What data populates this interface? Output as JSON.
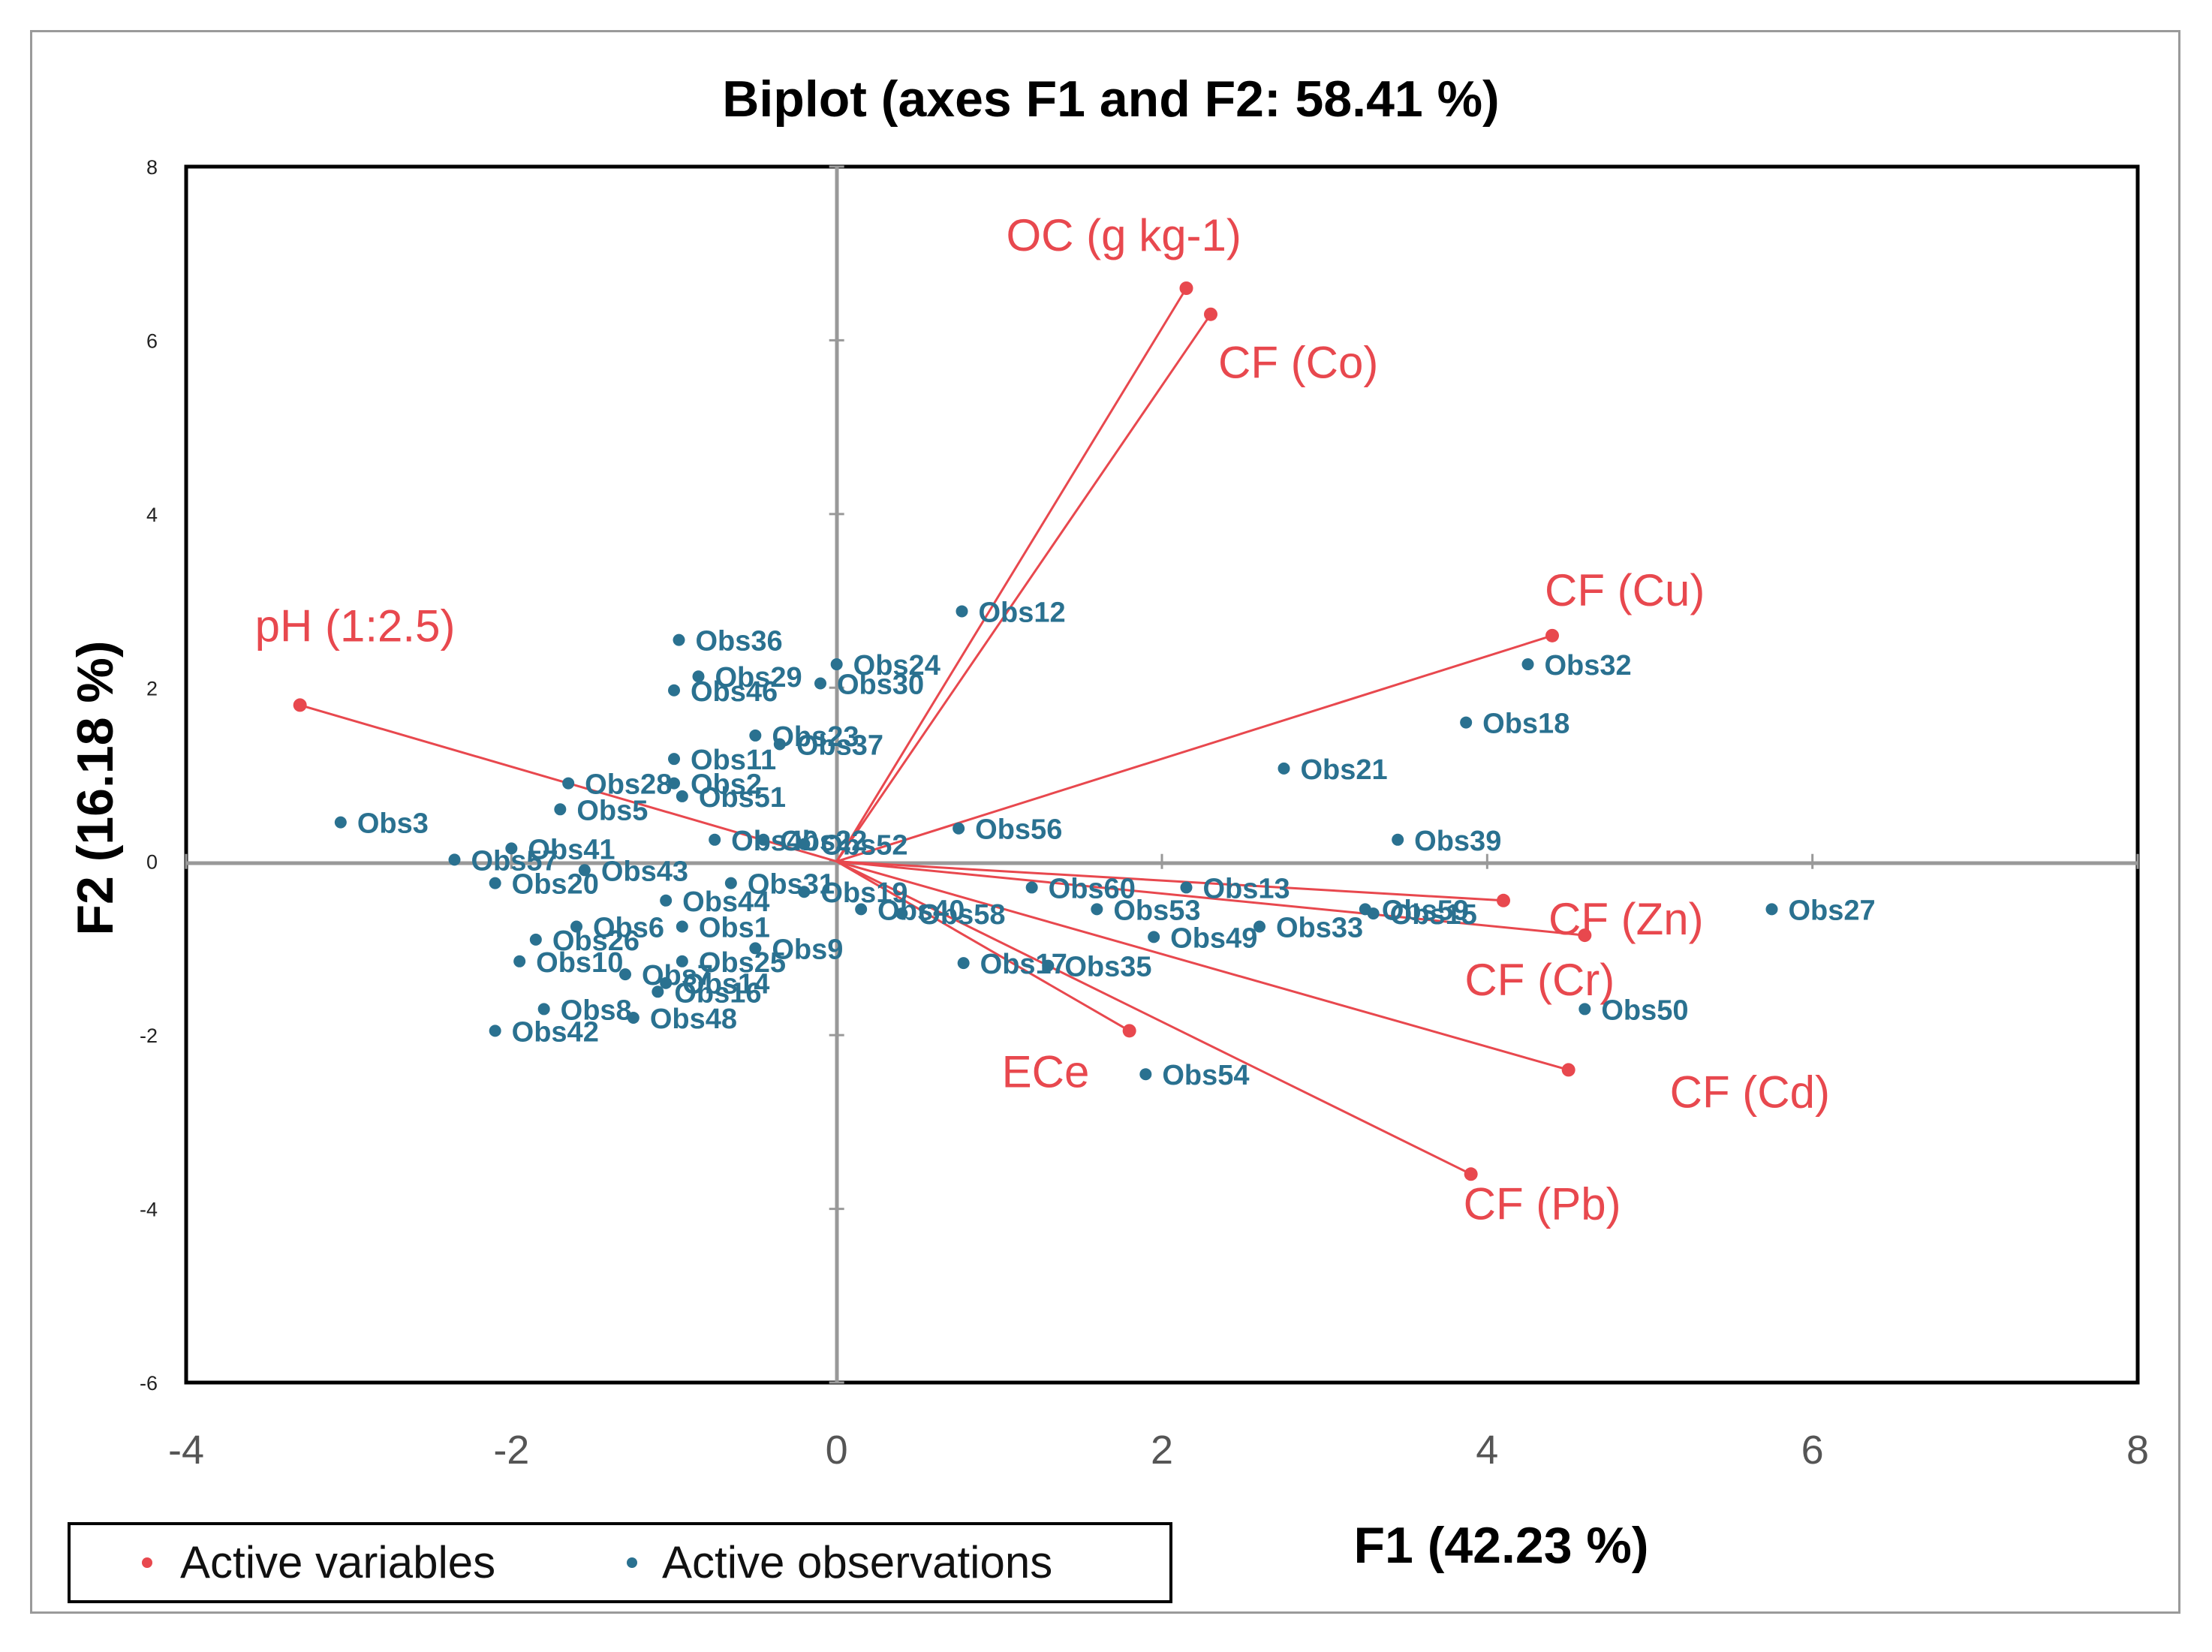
{
  "colors": {
    "variables": "#e8484e",
    "observations": "#2a7190",
    "axes": "#999999",
    "frame": "#000000"
  },
  "chart_data": {
    "type": "scatter",
    "title": "Biplot (axes F1 and F2: 58.41 %)",
    "xlabel": "F1 (42.23 %)",
    "ylabel": "F2 (16.18 %)",
    "xlim": [
      -4,
      8
    ],
    "ylim": [
      -6,
      8
    ],
    "xticks": [
      "-4",
      "-2",
      "0",
      "2",
      "4",
      "6",
      "8"
    ],
    "yticks": [
      "8",
      "6",
      "4",
      "2",
      "0",
      "-2",
      "-4",
      "-6"
    ],
    "legend": {
      "position": "bottom-left",
      "entries": [
        "Active variables",
        "Active observations"
      ]
    },
    "variables": [
      {
        "name": "OC (g kg-1)",
        "x": 2.15,
        "y": 6.6
      },
      {
        "name": "CF (Co)",
        "x": 2.3,
        "y": 6.3
      },
      {
        "name": "CF (Cu)",
        "x": 4.4,
        "y": 2.6
      },
      {
        "name": "pH (1:2.5)",
        "x": -3.3,
        "y": 1.8
      },
      {
        "name": "CF (Zn)",
        "x": 4.1,
        "y": -0.45
      },
      {
        "name": "CF (Cr)",
        "x": 4.6,
        "y": -0.85
      },
      {
        "name": "CF (Cd)",
        "x": 4.5,
        "y": -2.4
      },
      {
        "name": "CF (Pb)",
        "x": 3.9,
        "y": -3.6
      },
      {
        "name": "ECe",
        "x": 1.8,
        "y": -1.95
      }
    ],
    "observations": [
      {
        "name": "Obs36",
        "x": -0.97,
        "y": 2.55
      },
      {
        "name": "Obs12",
        "x": 0.77,
        "y": 2.88
      },
      {
        "name": "Obs24",
        "x": 0.0,
        "y": 2.27
      },
      {
        "name": "Obs29",
        "x": -0.85,
        "y": 2.13
      },
      {
        "name": "Obs30",
        "x": -0.1,
        "y": 2.05
      },
      {
        "name": "Obs46",
        "x": -1.0,
        "y": 1.97
      },
      {
        "name": "Obs32",
        "x": 4.25,
        "y": 2.27
      },
      {
        "name": "Obs18",
        "x": 3.87,
        "y": 1.6
      },
      {
        "name": "Obs21",
        "x": 2.75,
        "y": 1.07
      },
      {
        "name": "Obs23",
        "x": -0.5,
        "y": 1.45
      },
      {
        "name": "Obs37",
        "x": -0.35,
        "y": 1.35
      },
      {
        "name": "Obs11",
        "x": -1.0,
        "y": 1.18
      },
      {
        "name": "Obs28",
        "x": -1.65,
        "y": 0.9
      },
      {
        "name": "Obs2",
        "x": -1.0,
        "y": 0.9
      },
      {
        "name": "Obs51",
        "x": -0.95,
        "y": 0.75
      },
      {
        "name": "Obs5",
        "x": -1.7,
        "y": 0.6
      },
      {
        "name": "Obs3",
        "x": -3.05,
        "y": 0.45
      },
      {
        "name": "Obs56",
        "x": 0.75,
        "y": 0.38
      },
      {
        "name": "Obs39",
        "x": 3.45,
        "y": 0.25
      },
      {
        "name": "Obs40",
        "x": -0.75,
        "y": 0.25
      },
      {
        "name": "Obs22",
        "x": -0.45,
        "y": 0.25
      },
      {
        "name": "Obs52",
        "x": -0.2,
        "y": 0.2
      },
      {
        "name": "Obs41",
        "x": -2.0,
        "y": 0.15
      },
      {
        "name": "Obs57",
        "x": -2.35,
        "y": 0.02
      },
      {
        "name": "Obs43",
        "x": -1.55,
        "y": -0.1
      },
      {
        "name": "Obs20",
        "x": -2.1,
        "y": -0.25
      },
      {
        "name": "Obs31",
        "x": -0.65,
        "y": -0.25
      },
      {
        "name": "Obs19",
        "x": -0.2,
        "y": -0.35
      },
      {
        "name": "Obs44",
        "x": -1.05,
        "y": -0.45
      },
      {
        "name": "Obs40",
        "x": 0.15,
        "y": -0.55
      },
      {
        "name": "Obs58",
        "x": 0.4,
        "y": -0.6
      },
      {
        "name": "Obs60",
        "x": 1.2,
        "y": -0.3
      },
      {
        "name": "Obs13",
        "x": 2.15,
        "y": -0.3
      },
      {
        "name": "Obs53",
        "x": 1.6,
        "y": -0.55
      },
      {
        "name": "Obs59",
        "x": 3.25,
        "y": -0.55
      },
      {
        "name": "Obs15",
        "x": 3.3,
        "y": -0.6
      },
      {
        "name": "Obs27",
        "x": 5.75,
        "y": -0.55
      },
      {
        "name": "Obs33",
        "x": 2.6,
        "y": -0.75
      },
      {
        "name": "Obs49",
        "x": 1.95,
        "y": -0.87
      },
      {
        "name": "Obs1",
        "x": -0.95,
        "y": -0.75
      },
      {
        "name": "Obs6",
        "x": -1.6,
        "y": -0.75
      },
      {
        "name": "Obs26",
        "x": -1.85,
        "y": -0.9
      },
      {
        "name": "Obs9",
        "x": -0.5,
        "y": -1.0
      },
      {
        "name": "Obs25",
        "x": -0.95,
        "y": -1.15
      },
      {
        "name": "Obs10",
        "x": -1.95,
        "y": -1.15
      },
      {
        "name": "Obs7",
        "x": -1.3,
        "y": -1.3
      },
      {
        "name": "Obs17",
        "x": 0.78,
        "y": -1.17
      },
      {
        "name": "Obs35",
        "x": 1.3,
        "y": -1.2
      },
      {
        "name": "Obs14",
        "x": -1.05,
        "y": -1.4
      },
      {
        "name": "Obs16",
        "x": -1.1,
        "y": -1.5
      },
      {
        "name": "Obs50",
        "x": 4.6,
        "y": -1.7
      },
      {
        "name": "Obs8",
        "x": -1.8,
        "y": -1.7
      },
      {
        "name": "Obs48",
        "x": -1.25,
        "y": -1.8
      },
      {
        "name": "Obs42",
        "x": -2.1,
        "y": -1.95
      },
      {
        "name": "Obs54",
        "x": 1.9,
        "y": -2.45
      }
    ]
  }
}
